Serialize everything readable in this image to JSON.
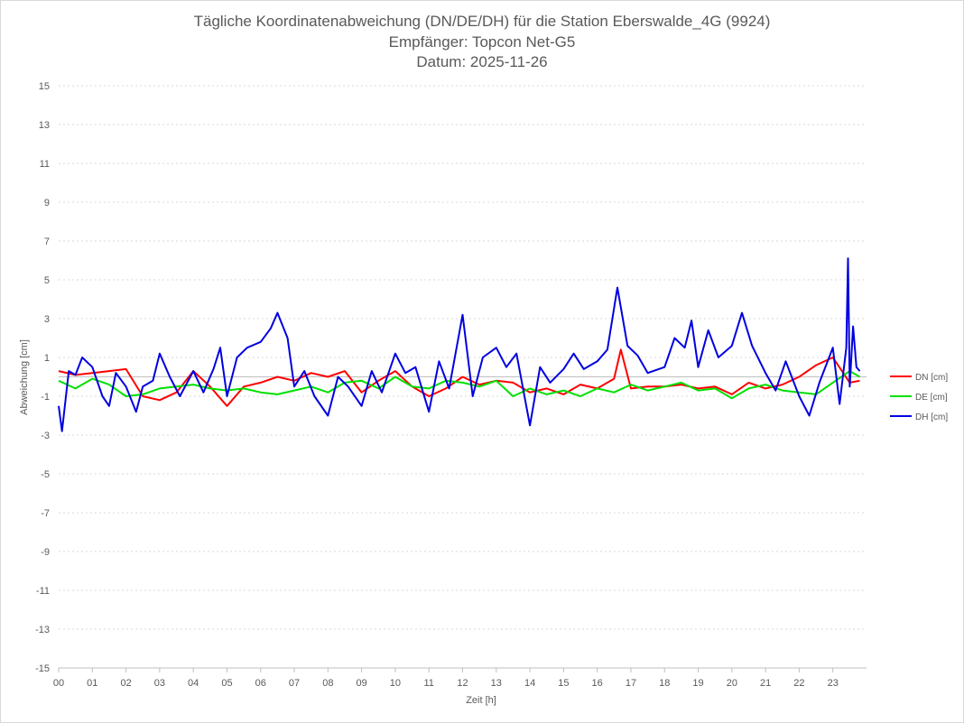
{
  "chart_data": {
    "type": "line",
    "title": [
      "Tägliche Koordinatenabweichung (DN/DE/DH) für die Station Eberswalde_4G (9924)",
      "Empfänger: Topcon Net-G5",
      "Datum: 2025-11-26"
    ],
    "xlabel": "Zeit [h]",
    "ylabel": "Abweichung [cm]",
    "xlim": [
      0,
      24
    ],
    "ylim": [
      -15,
      15
    ],
    "x_ticks": [
      "00",
      "01",
      "02",
      "03",
      "04",
      "05",
      "06",
      "07",
      "08",
      "09",
      "10",
      "11",
      "12",
      "13",
      "14",
      "15",
      "16",
      "17",
      "18",
      "19",
      "20",
      "21",
      "22",
      "23"
    ],
    "y_ticks": [
      "15",
      "13",
      "11",
      "9",
      "7",
      "5",
      "3",
      "1",
      "-1",
      "-3",
      "-5",
      "-7",
      "-9",
      "-11",
      "-13",
      "-15"
    ],
    "grid": true,
    "legend_position": "right",
    "series": [
      {
        "name": "DN [cm]",
        "color": "#ff0000",
        "x": [
          0.0,
          0.5,
          1.0,
          1.5,
          2.0,
          2.5,
          3.0,
          3.5,
          4.0,
          4.5,
          5.0,
          5.5,
          6.0,
          6.5,
          7.0,
          7.5,
          8.0,
          8.5,
          9.0,
          9.5,
          10.0,
          10.5,
          11.0,
          11.5,
          12.0,
          12.5,
          13.0,
          13.5,
          14.0,
          14.5,
          15.0,
          15.5,
          16.0,
          16.5,
          16.7,
          17.0,
          17.5,
          18.0,
          18.5,
          19.0,
          19.5,
          20.0,
          20.5,
          21.0,
          21.5,
          22.0,
          22.5,
          23.0,
          23.5,
          23.8
        ],
        "values": [
          0.3,
          0.1,
          0.2,
          0.3,
          0.4,
          -1.0,
          -1.2,
          -0.8,
          0.3,
          -0.5,
          -1.5,
          -0.5,
          -0.3,
          0.0,
          -0.2,
          0.2,
          0.0,
          0.3,
          -0.8,
          -0.2,
          0.3,
          -0.5,
          -1.0,
          -0.6,
          0.0,
          -0.4,
          -0.2,
          -0.3,
          -0.8,
          -0.6,
          -0.9,
          -0.4,
          -0.6,
          -0.1,
          1.4,
          -0.6,
          -0.5,
          -0.5,
          -0.4,
          -0.6,
          -0.5,
          -0.9,
          -0.3,
          -0.6,
          -0.4,
          0.0,
          0.6,
          1.0,
          -0.3,
          -0.2
        ]
      },
      {
        "name": "DE [cm]",
        "color": "#00e000",
        "x": [
          0.0,
          0.5,
          1.0,
          1.5,
          2.0,
          2.5,
          3.0,
          3.5,
          4.0,
          4.5,
          5.0,
          5.5,
          6.0,
          6.5,
          7.0,
          7.5,
          8.0,
          8.5,
          9.0,
          9.5,
          10.0,
          10.5,
          11.0,
          11.5,
          12.0,
          12.5,
          13.0,
          13.5,
          14.0,
          14.5,
          15.0,
          15.5,
          16.0,
          16.5,
          17.0,
          17.5,
          18.0,
          18.5,
          19.0,
          19.5,
          20.0,
          20.5,
          21.0,
          21.5,
          22.0,
          22.5,
          23.0,
          23.5,
          23.8
        ],
        "values": [
          -0.2,
          -0.6,
          -0.1,
          -0.4,
          -1.0,
          -0.9,
          -0.6,
          -0.5,
          -0.4,
          -0.6,
          -0.7,
          -0.6,
          -0.8,
          -0.9,
          -0.7,
          -0.5,
          -0.8,
          -0.3,
          -0.2,
          -0.6,
          0.0,
          -0.5,
          -0.6,
          -0.2,
          -0.3,
          -0.5,
          -0.2,
          -1.0,
          -0.6,
          -0.9,
          -0.7,
          -1.0,
          -0.6,
          -0.8,
          -0.4,
          -0.7,
          -0.5,
          -0.3,
          -0.7,
          -0.6,
          -1.1,
          -0.6,
          -0.4,
          -0.7,
          -0.8,
          -0.9,
          -0.3,
          0.3,
          0.0
        ]
      },
      {
        "name": "DH [cm]",
        "color": "#0000e0",
        "x": [
          0.0,
          0.1,
          0.3,
          0.5,
          0.7,
          1.0,
          1.3,
          1.5,
          1.7,
          2.0,
          2.3,
          2.5,
          2.8,
          3.0,
          3.3,
          3.6,
          4.0,
          4.3,
          4.6,
          4.8,
          5.0,
          5.3,
          5.6,
          6.0,
          6.3,
          6.5,
          6.8,
          7.0,
          7.3,
          7.6,
          8.0,
          8.3,
          8.6,
          9.0,
          9.3,
          9.6,
          10.0,
          10.3,
          10.6,
          11.0,
          11.3,
          11.6,
          12.0,
          12.3,
          12.6,
          13.0,
          13.3,
          13.6,
          14.0,
          14.3,
          14.6,
          15.0,
          15.3,
          15.6,
          16.0,
          16.3,
          16.6,
          16.9,
          17.2,
          17.5,
          18.0,
          18.3,
          18.6,
          18.8,
          19.0,
          19.3,
          19.6,
          20.0,
          20.3,
          20.6,
          21.0,
          21.3,
          21.6,
          22.0,
          22.3,
          22.6,
          23.0,
          23.2,
          23.4,
          23.45,
          23.5,
          23.6,
          23.7,
          23.8
        ],
        "values": [
          -1.5,
          -2.8,
          0.3,
          0.1,
          1.0,
          0.5,
          -1.0,
          -1.5,
          0.2,
          -0.5,
          -1.8,
          -0.5,
          -0.2,
          1.2,
          0.0,
          -1.0,
          0.3,
          -0.8,
          0.4,
          1.5,
          -1.0,
          1.0,
          1.5,
          1.8,
          2.5,
          3.3,
          2.0,
          -0.5,
          0.3,
          -1.0,
          -2.0,
          0.0,
          -0.5,
          -1.5,
          0.3,
          -0.8,
          1.2,
          0.2,
          0.5,
          -1.8,
          0.8,
          -0.6,
          3.2,
          -1.0,
          1.0,
          1.5,
          0.5,
          1.2,
          -2.5,
          0.5,
          -0.3,
          0.4,
          1.2,
          0.4,
          0.8,
          1.4,
          4.6,
          1.6,
          1.1,
          0.2,
          0.5,
          2.0,
          1.5,
          2.9,
          0.5,
          2.4,
          1.0,
          1.6,
          3.3,
          1.6,
          0.2,
          -0.7,
          0.8,
          -1.0,
          -2.0,
          -0.3,
          1.5,
          -1.4,
          1.5,
          6.1,
          -0.5,
          2.6,
          0.5,
          0.3
        ]
      }
    ]
  }
}
